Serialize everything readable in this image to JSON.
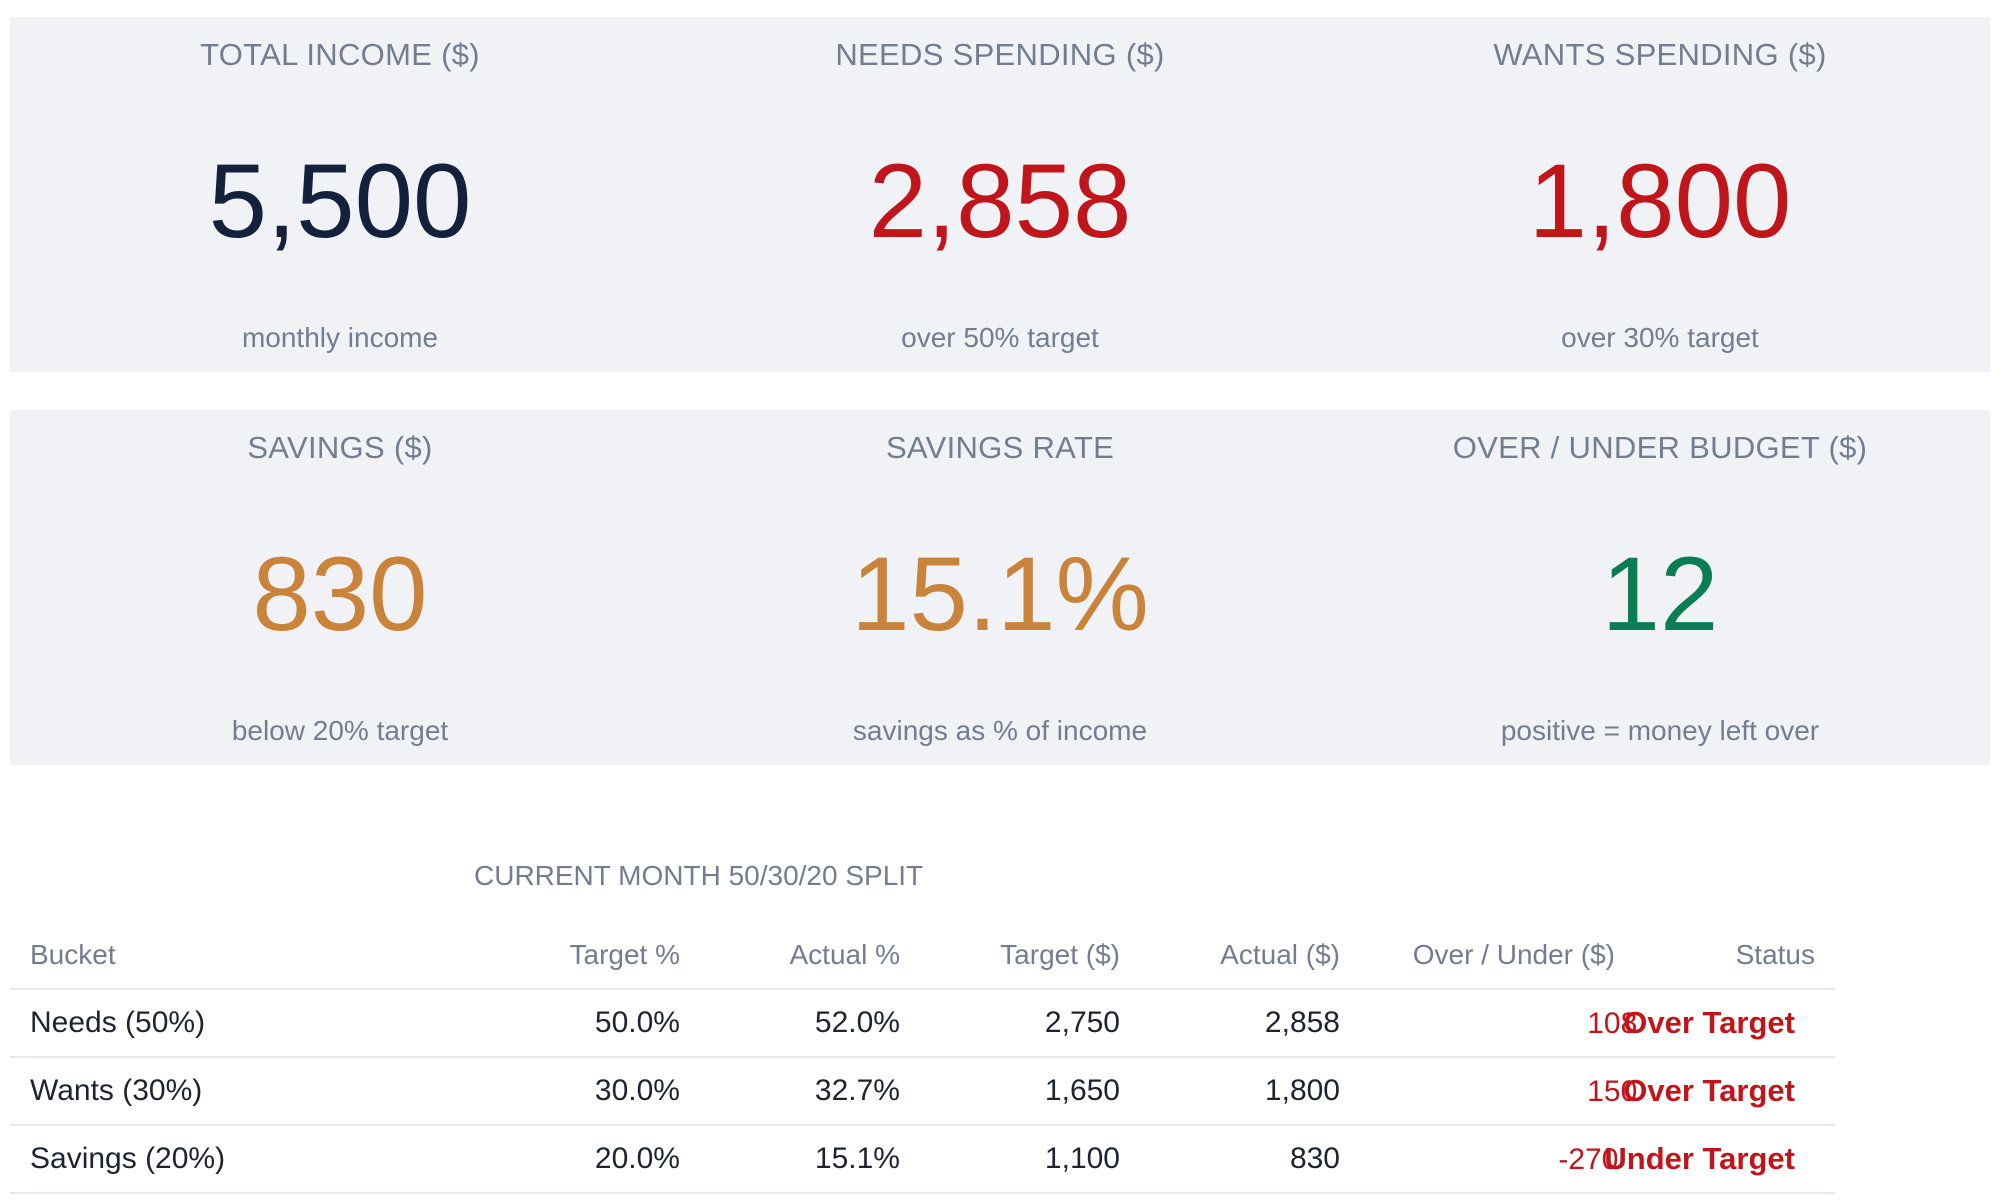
{
  "kpis_row1": [
    {
      "label": "TOTAL INCOME ($)",
      "value": "5,500",
      "sub": "monthly income",
      "color": "#13213d"
    },
    {
      "label": "NEEDS SPENDING ($)",
      "value": "2,858",
      "sub": "over 50% target",
      "color": "#c0151b"
    },
    {
      "label": "WANTS SPENDING ($)",
      "value": "1,800",
      "sub": "over 30% target",
      "color": "#c0151b"
    }
  ],
  "kpis_row2": [
    {
      "label": "SAVINGS ($)",
      "value": "830",
      "sub": "below 20% target",
      "color": "#c9833a"
    },
    {
      "label": "SAVINGS RATE",
      "value": "15.1%",
      "sub": "savings as % of income",
      "color": "#c9833a"
    },
    {
      "label": "OVER / UNDER BUDGET ($)",
      "value": "12",
      "sub": "positive = money left over",
      "color": "#0a7d55"
    }
  ],
  "split_table": {
    "title": "CURRENT MONTH 50/30/20 SPLIT",
    "headers": [
      "Bucket",
      "Target %",
      "Actual %",
      "Target ($)",
      "Actual ($)",
      "Over / Under ($)",
      "Status"
    ],
    "rows": [
      {
        "bucket": "Needs (50%)",
        "target_pct": "50.0%",
        "actual_pct": "52.0%",
        "target_amt": "2,750",
        "actual_amt": "2,858",
        "over_under": "108",
        "status": "Over Target"
      },
      {
        "bucket": "Wants (30%)",
        "target_pct": "30.0%",
        "actual_pct": "32.7%",
        "target_amt": "1,650",
        "actual_amt": "1,800",
        "over_under": "150",
        "status": "Over Target"
      },
      {
        "bucket": "Savings (20%)",
        "target_pct": "20.0%",
        "actual_pct": "15.1%",
        "target_amt": "1,100",
        "actual_amt": "830",
        "over_under": "-270",
        "status": "Under Target"
      }
    ]
  }
}
